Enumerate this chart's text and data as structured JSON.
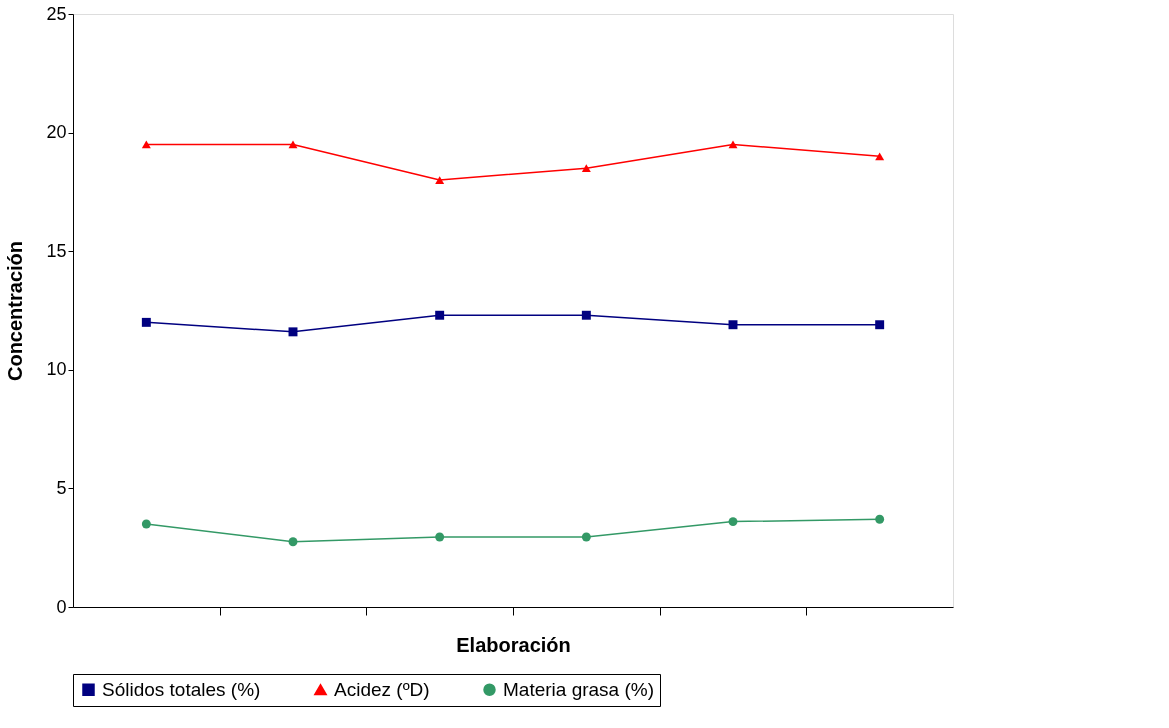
{
  "chart_data": {
    "type": "line",
    "xlabel": "Elaboración",
    "ylabel": "Concentración",
    "categories": [
      null,
      null,
      null,
      null,
      null,
      null
    ],
    "series": [
      {
        "name": "Sólidos totales (%)",
        "color": "#000080",
        "marker": "square",
        "values": [
          12.0,
          11.6,
          12.3,
          12.3,
          11.9,
          11.9
        ]
      },
      {
        "name": "Acidez (ºD)",
        "color": "#ff0000",
        "marker": "triangle",
        "values": [
          19.5,
          19.5,
          18.0,
          18.5,
          19.5,
          19.0
        ]
      },
      {
        "name": "Materia grasa (%)",
        "color": "#339966",
        "marker": "circle",
        "values": [
          3.5,
          2.75,
          2.95,
          2.95,
          3.6,
          3.7
        ]
      }
    ],
    "ylim": [
      0,
      25
    ],
    "yticks": [
      0,
      5,
      10,
      15,
      20,
      25
    ],
    "grid": false,
    "legend": "bottom",
    "tick_labels": "y"
  }
}
